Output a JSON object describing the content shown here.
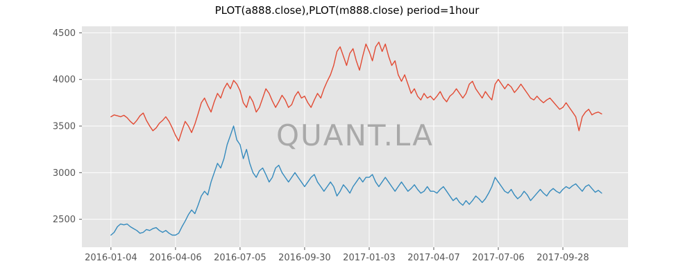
{
  "chart_data": {
    "type": "line",
    "title": "PLOT(a888.close),PLOT(m888.close) period=1hour",
    "watermark": "QUANT.LA",
    "x_tick_labels": [
      "2016-01-04",
      "2016-04-06",
      "2016-07-05",
      "2016-09-30",
      "2017-01-03",
      "2017-04-07",
      "2017-07-06",
      "2017-09-28"
    ],
    "x_tick_positions": [
      0,
      1,
      2,
      3,
      4,
      5,
      6,
      7
    ],
    "xlim": [
      -0.45,
      8.01
    ],
    "y_ticks": [
      2500,
      3000,
      3500,
      4000,
      4500
    ],
    "ylim": [
      2200,
      4570
    ],
    "grid": true,
    "legend_position": "none",
    "colors": {
      "plot_bg": "#E5E5E5",
      "grid": "#FFFFFF",
      "tick_label": "#555555",
      "title": "#000000",
      "watermark": "#A9A9A9"
    },
    "series": [
      {
        "name": "a888.close",
        "color": "#E24A33",
        "x_start": 0,
        "x_step": 0.05,
        "values": [
          3600,
          3620,
          3610,
          3600,
          3615,
          3590,
          3550,
          3520,
          3560,
          3610,
          3640,
          3560,
          3500,
          3450,
          3480,
          3530,
          3560,
          3600,
          3550,
          3480,
          3400,
          3340,
          3450,
          3550,
          3500,
          3430,
          3520,
          3630,
          3750,
          3800,
          3720,
          3650,
          3760,
          3850,
          3800,
          3900,
          3960,
          3900,
          3990,
          3950,
          3880,
          3750,
          3700,
          3820,
          3760,
          3650,
          3700,
          3800,
          3900,
          3850,
          3770,
          3700,
          3760,
          3830,
          3780,
          3700,
          3730,
          3820,
          3870,
          3800,
          3820,
          3750,
          3700,
          3780,
          3850,
          3800,
          3900,
          3980,
          4050,
          4150,
          4300,
          4350,
          4250,
          4150,
          4280,
          4330,
          4200,
          4100,
          4250,
          4380,
          4300,
          4200,
          4350,
          4400,
          4300,
          4380,
          4250,
          4150,
          4200,
          4050,
          3980,
          4050,
          3950,
          3850,
          3900,
          3820,
          3780,
          3850,
          3800,
          3820,
          3780,
          3820,
          3870,
          3800,
          3760,
          3820,
          3850,
          3900,
          3850,
          3800,
          3850,
          3950,
          3980,
          3900,
          3850,
          3800,
          3870,
          3820,
          3780,
          3950,
          4000,
          3950,
          3900,
          3950,
          3920,
          3860,
          3900,
          3950,
          3900,
          3850,
          3800,
          3780,
          3820,
          3780,
          3750,
          3780,
          3800,
          3760,
          3720,
          3680,
          3700,
          3750,
          3700,
          3650,
          3600,
          3450,
          3600,
          3650,
          3680,
          3620,
          3640,
          3650,
          3630
        ]
      },
      {
        "name": "m888.close",
        "color": "#348ABD",
        "x_start": 0,
        "x_step": 0.05,
        "values": [
          2330,
          2360,
          2420,
          2450,
          2440,
          2450,
          2420,
          2400,
          2380,
          2350,
          2360,
          2390,
          2380,
          2400,
          2410,
          2380,
          2360,
          2380,
          2350,
          2330,
          2330,
          2350,
          2420,
          2480,
          2550,
          2600,
          2560,
          2650,
          2750,
          2800,
          2760,
          2900,
          3000,
          3100,
          3050,
          3150,
          3300,
          3400,
          3500,
          3350,
          3300,
          3150,
          3250,
          3100,
          3000,
          2950,
          3020,
          3050,
          2980,
          2900,
          2950,
          3050,
          3080,
          3000,
          2950,
          2900,
          2950,
          3000,
          2950,
          2900,
          2850,
          2900,
          2950,
          2980,
          2900,
          2850,
          2800,
          2850,
          2900,
          2850,
          2750,
          2800,
          2870,
          2830,
          2780,
          2850,
          2900,
          2950,
          2900,
          2950,
          2950,
          2980,
          2900,
          2850,
          2900,
          2950,
          2900,
          2850,
          2800,
          2850,
          2900,
          2850,
          2800,
          2830,
          2870,
          2820,
          2780,
          2800,
          2850,
          2800,
          2800,
          2780,
          2820,
          2850,
          2800,
          2750,
          2700,
          2730,
          2680,
          2650,
          2700,
          2660,
          2700,
          2750,
          2720,
          2680,
          2720,
          2780,
          2850,
          2950,
          2900,
          2850,
          2800,
          2780,
          2820,
          2760,
          2720,
          2750,
          2800,
          2760,
          2700,
          2740,
          2780,
          2820,
          2780,
          2750,
          2800,
          2830,
          2800,
          2780,
          2820,
          2850,
          2830,
          2860,
          2880,
          2840,
          2800,
          2850,
          2870,
          2830,
          2790,
          2810,
          2780
        ]
      }
    ]
  }
}
